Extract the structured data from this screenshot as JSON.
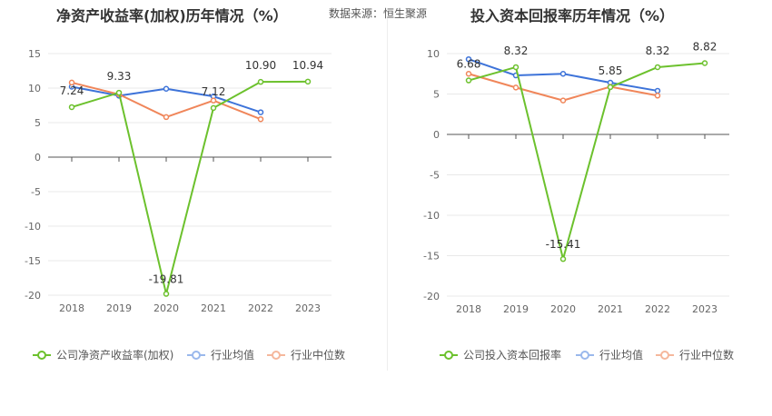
{
  "source": "数据来源：恒生聚源",
  "colors": {
    "company": "#6cc12d",
    "avg": "#3d73d9",
    "median": "#f0865a"
  },
  "chart_data": [
    {
      "type": "line",
      "title": "净资产收益率(加权)历年情况（%）",
      "categories": [
        "2018",
        "2019",
        "2020",
        "2021",
        "2022",
        "2023"
      ],
      "ylim": [
        -20,
        15
      ],
      "yticks": [
        15,
        10,
        5,
        0,
        -5,
        -10,
        -15,
        -20
      ],
      "grid": true,
      "legend_position": "bottom-left",
      "series": [
        {
          "name": "公司净资产收益率(加权)",
          "key": "company",
          "values": [
            7.24,
            9.33,
            -19.81,
            7.12,
            10.9,
            10.94
          ],
          "labels": [
            "7.24",
            "9.33",
            "-19.81",
            "7.12",
            "10.90",
            "10.94"
          ]
        },
        {
          "name": "行业均值",
          "key": "avg",
          "values": [
            10.2,
            8.9,
            9.9,
            8.8,
            6.5,
            null
          ]
        },
        {
          "name": "行业中位数",
          "key": "median",
          "values": [
            10.8,
            9.1,
            5.8,
            8.2,
            5.5,
            null
          ]
        }
      ]
    },
    {
      "type": "line",
      "title": "投入资本回报率历年情况（%）",
      "categories": [
        "2018",
        "2019",
        "2020",
        "2021",
        "2022",
        "2023"
      ],
      "ylim": [
        -20,
        10
      ],
      "yticks": [
        10,
        5,
        0,
        -5,
        -10,
        -15,
        -20
      ],
      "grid": true,
      "legend_position": "bottom-left",
      "series": [
        {
          "name": "公司投入资本回报率",
          "key": "company",
          "values": [
            6.68,
            8.32,
            -15.41,
            5.85,
            8.32,
            8.82
          ],
          "labels": [
            "6.68",
            "8.32",
            "-15.41",
            "5.85",
            "8.32",
            "8.82"
          ]
        },
        {
          "name": "行业均值",
          "key": "avg",
          "values": [
            9.3,
            7.3,
            7.5,
            6.4,
            5.4,
            null
          ]
        },
        {
          "name": "行业中位数",
          "key": "median",
          "values": [
            7.5,
            5.8,
            4.2,
            5.9,
            4.8,
            null
          ]
        }
      ]
    }
  ]
}
